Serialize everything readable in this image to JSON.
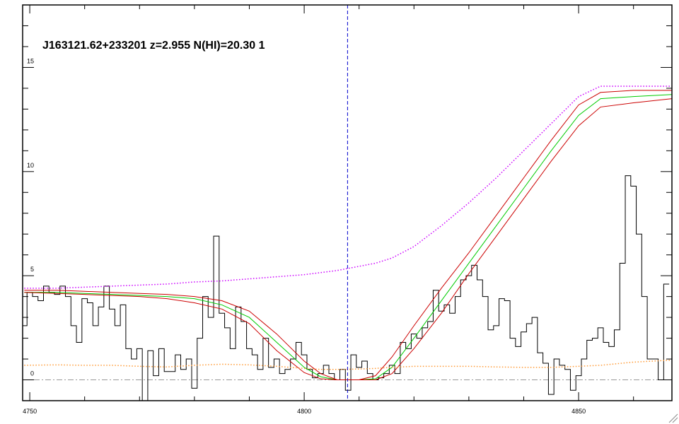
{
  "chart_data": {
    "type": "spectrum",
    "title": "J163121.62+233201 z=2.955 N(HI)=20.30 1",
    "xlim": [
      4748.7,
      4867
    ],
    "ylim": [
      -1,
      18
    ],
    "xticks": [
      4750,
      4800,
      4850
    ],
    "yticks": [
      0,
      5,
      10,
      15
    ],
    "xminorticks": [
      4760,
      4770,
      4780,
      4790,
      4810,
      4820,
      4830,
      4840,
      4860
    ],
    "yminorticks": [
      1,
      2,
      3,
      4,
      6,
      7,
      8,
      9,
      11,
      12,
      13,
      14,
      16,
      17
    ],
    "vline": {
      "value": 4807.9,
      "color": "#0000cc"
    },
    "hline": {
      "value": 0,
      "color": "#999999"
    },
    "series": [
      {
        "style": "steps",
        "color": "#000000",
        "x": [
          4749,
          4750,
          4751,
          4752,
          4753,
          4754,
          4755,
          4756,
          4757,
          4758,
          4759,
          4760,
          4761,
          4762,
          4763,
          4764,
          4765,
          4766,
          4767,
          4768,
          4769,
          4770,
          4771,
          4772,
          4773,
          4774,
          4775,
          4776,
          4777,
          4778,
          4779,
          4780,
          4781,
          4782,
          4783,
          4784,
          4785,
          4786,
          4787,
          4788,
          4789,
          4790,
          4791,
          4792,
          4793,
          4794,
          4795,
          4796,
          4797,
          4798,
          4799,
          4800,
          4801,
          4802,
          4803,
          4804,
          4805,
          4806,
          4807,
          4808,
          4809,
          4810,
          4811,
          4812,
          4813,
          4814,
          4815,
          4816,
          4817,
          4818,
          4819,
          4820,
          4821,
          4822,
          4823,
          4824,
          4825,
          4826,
          4827,
          4828,
          4829,
          4830,
          4831,
          4832,
          4833,
          4834,
          4835,
          4836,
          4837,
          4838,
          4839,
          4840,
          4841,
          4842,
          4843,
          4844,
          4845,
          4846,
          4847,
          4848,
          4849,
          4850,
          4851,
          4852,
          4853,
          4854,
          4855,
          4856,
          4857,
          4858,
          4859,
          4860,
          4861,
          4862,
          4863,
          4864,
          4865,
          4866
        ],
        "values": [
          2.6,
          4.2,
          4.0,
          3.8,
          4.5,
          4.2,
          4.1,
          4.5,
          4.0,
          2.6,
          1.8,
          3.9,
          3.7,
          2.6,
          3.5,
          4.5,
          3.4,
          2.6,
          3.6,
          1.5,
          1.0,
          1.5,
          -1.0,
          1.4,
          0.2,
          1.5,
          0.4,
          0.4,
          1.2,
          0.5,
          1.0,
          -0.4,
          2.0,
          4.0,
          3.0,
          6.9,
          3.2,
          2.5,
          1.5,
          3.5,
          2.8,
          1.5,
          1.2,
          0.5,
          2.0,
          0.6,
          1.0,
          0.3,
          0.5,
          1.0,
          1.8,
          1.2,
          0.5,
          0.1,
          0.3,
          0.7,
          0.3,
          0.0,
          0.5,
          -0.5,
          1.2,
          0.6,
          0.9,
          0.3,
          0.0,
          0.1,
          0.3,
          0.7,
          0.3,
          1.8,
          1.5,
          2.2,
          2.0,
          2.5,
          2.8,
          4.3,
          3.3,
          3.6,
          3.2,
          4.0,
          4.8,
          5.0,
          5.5,
          4.8,
          4.0,
          2.4,
          2.6,
          3.9,
          3.8,
          2.0,
          1.6,
          2.3,
          2.7,
          3.0,
          1.3,
          0.8,
          -0.7,
          1.0,
          0.7,
          0.5,
          -0.5,
          0.2,
          1.0,
          1.9,
          2.0,
          2.5,
          1.8,
          1.6,
          2.4,
          5.6,
          9.8,
          9.3,
          7.0,
          4.0,
          1.0,
          1.0,
          0.0,
          4.6
        ]
      },
      {
        "style": "solid",
        "color": "#00cc00",
        "x": [
          4749,
          4755,
          4760,
          4765,
          4770,
          4775,
          4780,
          4785,
          4790,
          4795,
          4800,
          4803,
          4806,
          4810,
          4813,
          4816,
          4820,
          4825,
          4830,
          4835,
          4840,
          4845,
          4850,
          4854,
          4860,
          4867
        ],
        "values": [
          4.2,
          4.2,
          4.15,
          4.1,
          4.05,
          4.0,
          3.9,
          3.6,
          3.0,
          1.8,
          0.6,
          0.15,
          0.0,
          0.0,
          0.05,
          0.6,
          2.0,
          3.8,
          5.6,
          7.4,
          9.2,
          11.0,
          12.7,
          13.5,
          13.6,
          13.7
        ]
      },
      {
        "style": "solid",
        "color": "#cc0000",
        "x": [
          4749,
          4755,
          4760,
          4765,
          4770,
          4775,
          4780,
          4785,
          4790,
          4795,
          4800,
          4803,
          4806,
          4810,
          4813,
          4816,
          4820,
          4825,
          4830,
          4835,
          4840,
          4845,
          4850,
          4854,
          4860,
          4867
        ],
        "values": [
          4.3,
          4.3,
          4.25,
          4.2,
          4.15,
          4.1,
          4.0,
          3.8,
          3.3,
          2.2,
          0.9,
          0.3,
          0.0,
          0.0,
          0.2,
          1.1,
          2.6,
          4.4,
          6.1,
          7.9,
          9.7,
          11.5,
          13.2,
          13.8,
          13.9,
          13.9
        ]
      },
      {
        "style": "solid",
        "color": "#cc0000",
        "x": [
          4749,
          4755,
          4760,
          4765,
          4770,
          4775,
          4780,
          4785,
          4790,
          4795,
          4800,
          4803,
          4806,
          4810,
          4813,
          4816,
          4820,
          4825,
          4830,
          4835,
          4840,
          4845,
          4850,
          4854,
          4860,
          4867
        ],
        "values": [
          4.2,
          4.15,
          4.1,
          4.05,
          4.0,
          3.9,
          3.7,
          3.4,
          2.7,
          1.4,
          0.35,
          0.05,
          0.0,
          0.0,
          0.0,
          0.3,
          1.5,
          3.2,
          5.1,
          6.9,
          8.7,
          10.5,
          12.2,
          13.1,
          13.3,
          13.5
        ]
      },
      {
        "style": "dotted",
        "color": "#cc00ff",
        "x": [
          4749,
          4755,
          4760,
          4765,
          4770,
          4775,
          4780,
          4785,
          4790,
          4795,
          4800,
          4803,
          4806,
          4810,
          4813,
          4816,
          4820,
          4825,
          4830,
          4835,
          4840,
          4845,
          4850,
          4854,
          4860,
          4867
        ],
        "values": [
          4.4,
          4.4,
          4.45,
          4.5,
          4.55,
          4.6,
          4.7,
          4.75,
          4.85,
          4.95,
          5.05,
          5.15,
          5.25,
          5.45,
          5.6,
          5.85,
          6.4,
          7.4,
          8.5,
          9.7,
          11.0,
          12.3,
          13.6,
          14.1,
          14.1,
          14.1
        ]
      },
      {
        "style": "dotted",
        "color": "#ff9933",
        "x": [
          4749,
          4755,
          4760,
          4765,
          4770,
          4775,
          4780,
          4785,
          4790,
          4795,
          4800,
          4803,
          4806,
          4810,
          4813,
          4816,
          4820,
          4825,
          4830,
          4835,
          4840,
          4845,
          4850,
          4854,
          4860,
          4867
        ],
        "values": [
          0.7,
          0.72,
          0.7,
          0.7,
          0.65,
          0.62,
          0.7,
          0.75,
          0.72,
          0.65,
          0.55,
          0.5,
          0.5,
          0.52,
          0.55,
          0.6,
          0.65,
          0.65,
          0.65,
          0.62,
          0.6,
          0.6,
          0.65,
          0.7,
          0.85,
          0.95
        ]
      }
    ]
  }
}
